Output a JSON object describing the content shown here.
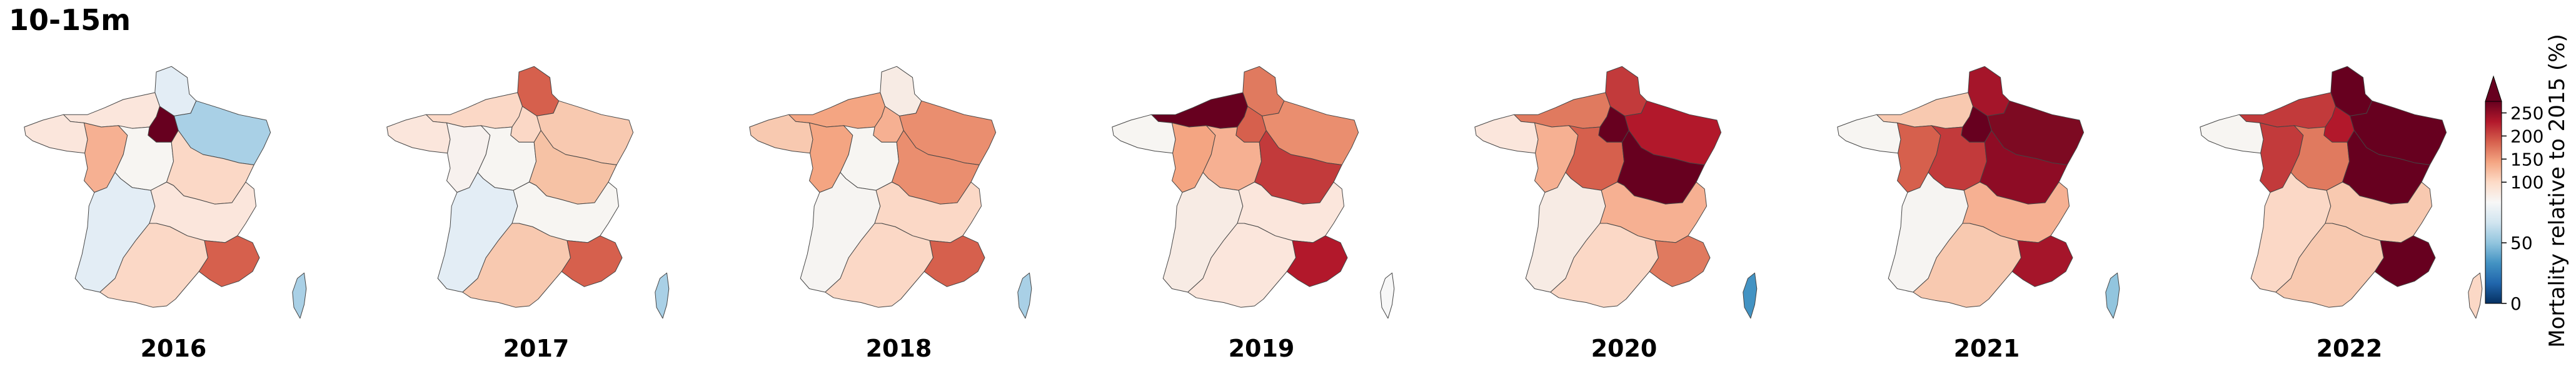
{
  "figure_title": "10-15m",
  "colorbar": {
    "label": "Mortality relative to 2015 (%)",
    "ticks": [
      "250",
      "200",
      "150",
      "100",
      "50",
      "0"
    ],
    "tick_values": [
      250,
      200,
      150,
      100,
      50,
      0
    ],
    "range": [
      0,
      275
    ],
    "extend": "max",
    "colors": [
      "#053061",
      "#2166ac",
      "#4393c3",
      "#92c5de",
      "#d1e5f0",
      "#f7f7f7",
      "#fddbc7",
      "#f4a582",
      "#d6604d",
      "#b2182b",
      "#67001f"
    ]
  },
  "panels": [
    {
      "year": "2016",
      "regions": {
        "hdf": "#e3edf5",
        "nor": "#fbe6dc",
        "idf": "#67001f",
        "ge": "#a9d0e6",
        "bre": "#fbe6dc",
        "pdl": "#f6b092",
        "cvl": "#f7f5f2",
        "bfc": "#fbd8c6",
        "naq": "#e3edf5",
        "ara": "#fbe6dc",
        "occ": "#fbd8c6",
        "paca": "#d6604d",
        "cor": "#a9d0e6"
      }
    },
    {
      "year": "2017",
      "regions": {
        "hdf": "#d6604d",
        "nor": "#fbd8c6",
        "idf": "#fbd8c6",
        "ge": "#f8c9b0",
        "bre": "#fbe6dc",
        "pdl": "#f7f1ee",
        "cvl": "#f7f5f2",
        "bfc": "#f6c2a5",
        "naq": "#e3edf5",
        "ara": "#f7f5f2",
        "occ": "#f8c9b0",
        "paca": "#d6604d",
        "cor": "#a9d0e6"
      }
    },
    {
      "year": "2018",
      "regions": {
        "hdf": "#f7ebe4",
        "nor": "#f4a582",
        "idf": "#f6b092",
        "ge": "#ea8e6f",
        "bre": "#f8c9b0",
        "pdl": "#f4a582",
        "cvl": "#f7f5f2",
        "bfc": "#ea8e6f",
        "naq": "#f6f4f2",
        "ara": "#fbd8c6",
        "occ": "#fbd8c6",
        "paca": "#d6604d",
        "cor": "#a9d0e6"
      }
    },
    {
      "year": "2019",
      "regions": {
        "hdf": "#e07a5f",
        "nor": "#67001f",
        "idf": "#d6604d",
        "ge": "#ea8e6f",
        "bre": "#f7f5f2",
        "pdl": "#f4a582",
        "cvl": "#f6b092",
        "bfc": "#c23a3b",
        "naq": "#f7ebe4",
        "ara": "#fbe6dc",
        "occ": "#fbe6dc",
        "paca": "#b2182b",
        "cor": "#f7f7f7"
      }
    },
    {
      "year": "2020",
      "regions": {
        "hdf": "#c23a3b",
        "nor": "#e07a5f",
        "idf": "#67001f",
        "ge": "#b2182b",
        "bre": "#fbe6dc",
        "pdl": "#f6b092",
        "cvl": "#d6604d",
        "bfc": "#67001f",
        "naq": "#f7ebe4",
        "ara": "#f6b092",
        "occ": "#fbd8c6",
        "paca": "#e07a5f",
        "cor": "#4393c3"
      }
    },
    {
      "year": "2021",
      "regions": {
        "hdf": "#a5152a",
        "nor": "#f8c9b0",
        "idf": "#67001f",
        "ge": "#7d0a22",
        "bre": "#f7f5f2",
        "pdl": "#d6604d",
        "cvl": "#c23a3b",
        "bfc": "#8e0c25",
        "naq": "#f6f4f2",
        "ara": "#f6b092",
        "occ": "#f8c9b0",
        "paca": "#a5152a",
        "cor": "#92c5de"
      }
    },
    {
      "year": "2022",
      "regions": {
        "hdf": "#67001f",
        "nor": "#c23a3b",
        "idf": "#b2182b",
        "ge": "#67001f",
        "bre": "#f7f5f2",
        "pdl": "#c23a3b",
        "cvl": "#e07a5f",
        "bfc": "#67001f",
        "naq": "#fbd8c6",
        "ara": "#f8c9b0",
        "occ": "#f8c9b0",
        "paca": "#67001f",
        "cor": "#fbd8c6"
      }
    }
  ]
}
